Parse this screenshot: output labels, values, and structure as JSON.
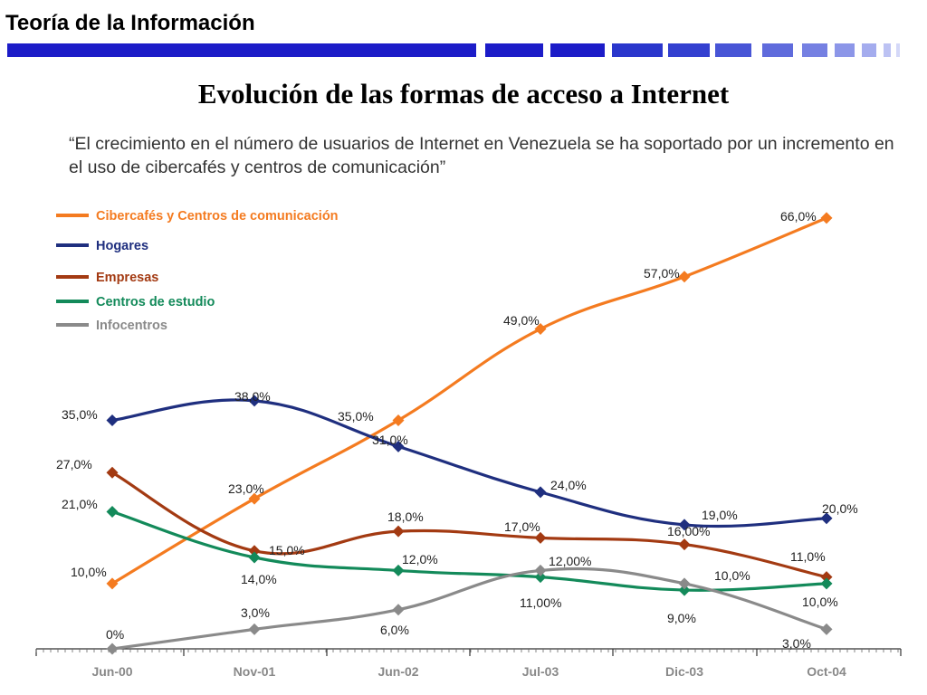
{
  "header": {
    "title": "Teoría de la Información"
  },
  "slide": {
    "title": "Evolución de las formas de acceso a Internet",
    "quote": "“El crecimiento en el número de usuarios de Internet en Venezuela se ha soportado por un incremento en el uso de cibercafés y centros de comunicación”"
  },
  "chart_data": {
    "type": "line",
    "categories": [
      "Jun-00",
      "Nov-01",
      "Jun-02",
      "Jul-03",
      "Dic-03",
      "Oct-04"
    ],
    "ylim": [
      0,
      70
    ],
    "grid": false,
    "legend_position": "top-left",
    "series": [
      {
        "name": "Cibercafés y Centros de comunicación",
        "color": "#f47b20",
        "values": [
          10,
          23,
          35,
          49,
          57,
          66
        ],
        "labels": [
          "10,0%",
          "23,0%",
          "35,0%",
          "49,0%",
          "57,0%",
          "66,0%"
        ]
      },
      {
        "name": "Hogares",
        "color": "#1f2f7f",
        "values": [
          35,
          38,
          31,
          24,
          19,
          20
        ],
        "labels": [
          "35,0%",
          "38,0%",
          "31,0%",
          "24,0%",
          "19,0%",
          "20,0%"
        ]
      },
      {
        "name": "Empresas",
        "color": "#a33a12",
        "values": [
          27,
          15,
          18,
          17,
          16,
          11
        ],
        "labels": [
          "27,0%",
          "15,0%",
          "18,0%",
          "17,0%",
          "16,00%",
          "11,0%"
        ]
      },
      {
        "name": "Centros de estudio",
        "color": "#138a5a",
        "values": [
          21,
          14,
          12,
          11,
          9,
          10
        ],
        "labels": [
          "21,0%",
          "14,0%",
          "12,0%",
          "11,00%",
          "9,0%",
          "10,0%"
        ]
      },
      {
        "name": "Infocentros",
        "color": "#8a8a8a",
        "values": [
          0,
          3,
          6,
          12,
          10,
          3
        ],
        "labels": [
          "0%",
          "3,0%",
          "6,0%",
          "12,00%",
          "10,0%",
          "3,0%"
        ]
      }
    ]
  }
}
